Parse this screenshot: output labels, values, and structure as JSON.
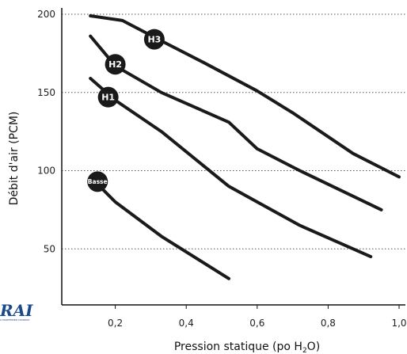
{
  "chart_data": {
    "type": "line",
    "title": "",
    "xlabel": "Pression statique (po H₂O)",
    "xlabel_parts": [
      "Pression statique (po H",
      "2",
      "O)"
    ],
    "ylabel": "Débit d'air (PCM)",
    "xlim": [
      0.05,
      1.0
    ],
    "ylim": [
      15,
      200
    ],
    "x_ticks": [
      0.2,
      0.4,
      0.6,
      0.8,
      1.0
    ],
    "x_tick_labels": [
      "0,2",
      "0,4",
      "0,6",
      "0,8",
      "1,0"
    ],
    "y_ticks": [
      50,
      100,
      150,
      200
    ],
    "y_tick_labels": [
      "50",
      "100",
      "150",
      "200"
    ],
    "grid": "horizontal dotted",
    "series": [
      {
        "name": "H3",
        "x": [
          0.13,
          0.22,
          0.33,
          0.45,
          0.6,
          0.7,
          0.87,
          1.0
        ],
        "y": [
          199,
          196,
          183,
          169,
          151,
          137,
          111,
          96
        ]
      },
      {
        "name": "H2",
        "x": [
          0.13,
          0.2,
          0.33,
          0.52,
          0.6,
          0.72,
          0.95
        ],
        "y": [
          186,
          167,
          150,
          131,
          114,
          100,
          75
        ]
      },
      {
        "name": "H1",
        "x": [
          0.13,
          0.2,
          0.33,
          0.52,
          0.72,
          0.92
        ],
        "y": [
          159,
          145,
          125,
          90,
          65,
          45
        ]
      },
      {
        "name": "Basse",
        "x": [
          0.13,
          0.2,
          0.33,
          0.52
        ],
        "y": [
          96,
          80,
          58,
          31
        ]
      }
    ],
    "labels": [
      {
        "text": "H3",
        "x": 0.31,
        "y": 184
      },
      {
        "text": "H2",
        "x": 0.2,
        "y": 168
      },
      {
        "text": "H1",
        "x": 0.18,
        "y": 147
      },
      {
        "text": "Basse",
        "x": 0.15,
        "y": 93
      }
    ],
    "line_color": "#1a1a1a",
    "badge_color": "#1a1a1a"
  },
  "logo": {
    "main": "RAI",
    "sub": "A MORTENSEN COMPANY",
    "color": "#1a4a8a"
  }
}
